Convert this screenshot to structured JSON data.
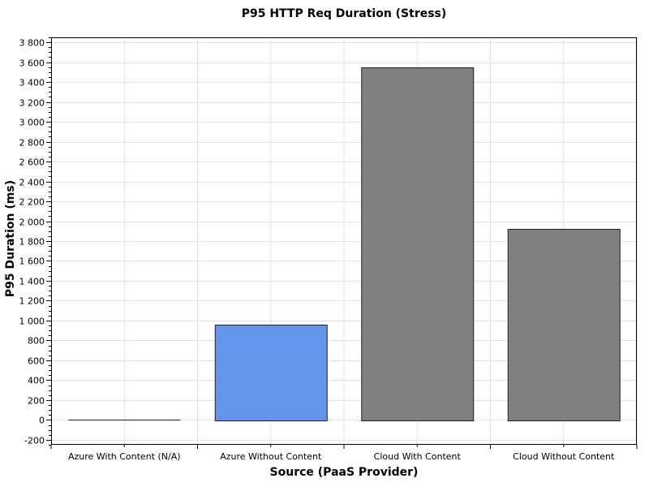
{
  "chart_data": {
    "type": "bar",
    "title": "P95 HTTP Req Duration (Stress)",
    "xlabel": "Source (PaaS Provider)",
    "ylabel": "P95 Duration (ms)",
    "categories": [
      "Azure With Content (N/A)",
      "Azure Without Content",
      "Cloud With Content",
      "Cloud Without Content"
    ],
    "values": [
      0,
      960,
      3550,
      1925
    ],
    "ylim": [
      -250,
      3850
    ],
    "yticks": [
      -200,
      0,
      200,
      400,
      600,
      800,
      1000,
      1200,
      1400,
      1600,
      1800,
      2000,
      2200,
      2400,
      2600,
      2800,
      3000,
      3200,
      3400,
      3600,
      3800
    ],
    "ytick_labels": [
      "-200",
      "0",
      "200",
      "400",
      "600",
      "800",
      "1 000",
      "1 200",
      "1 400",
      "1 600",
      "1 800",
      "2 000",
      "2 200",
      "2 400",
      "2 600",
      "2 800",
      "3 000",
      "3 200",
      "3 400",
      "3 600",
      "3 800"
    ],
    "bar_colors": [
      "#808080",
      "#6495ED",
      "#808080",
      "#808080"
    ],
    "grid": true,
    "legend": "none"
  }
}
